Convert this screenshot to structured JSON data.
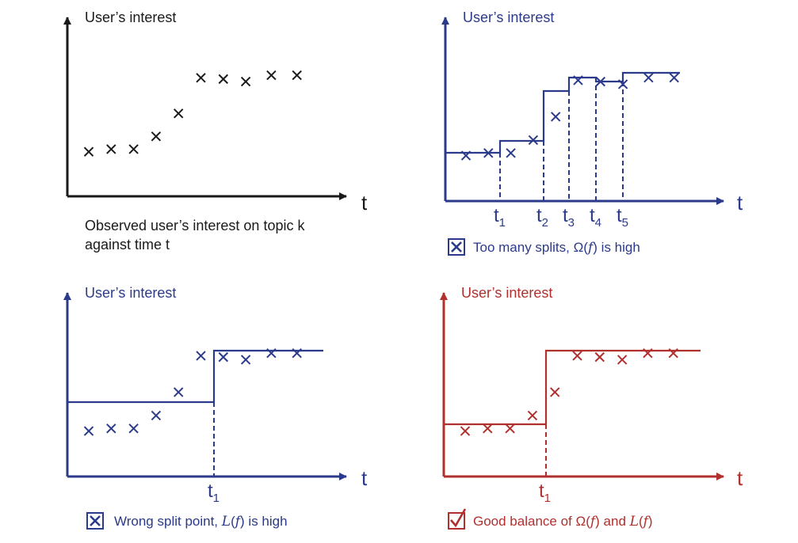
{
  "colors": {
    "black": "#1a1a1a",
    "blue": "#2b3a8a",
    "red": "#b0302e"
  },
  "points": [
    [
      1,
      0.35
    ],
    [
      2,
      0.37
    ],
    [
      3,
      0.37
    ],
    [
      4,
      0.47
    ],
    [
      5,
      0.65
    ],
    [
      6,
      0.93
    ],
    [
      7,
      0.92
    ],
    [
      8,
      0.9
    ],
    [
      9,
      0.95
    ],
    [
      10,
      0.95
    ]
  ],
  "panels": {
    "tl": {
      "ylabel": "User’s interest",
      "xlabel": "t",
      "caption_lines": [
        "Observed user’s interest on topic k",
        "against time t"
      ]
    },
    "tr": {
      "ylabel": "User’s interest",
      "xlabel": "t",
      "ticks": [
        {
          "base": "t",
          "sub": "1"
        },
        {
          "base": "t",
          "sub": "2"
        },
        {
          "base": "t",
          "sub": "3"
        },
        {
          "base": "t",
          "sub": "4"
        },
        {
          "base": "t",
          "sub": "5"
        }
      ],
      "caption": "Too many splits, Ω(f) is high",
      "caption_parts": [
        "Too many splits, Ω(",
        "f",
        ")  is high"
      ],
      "mark": "cross-box-icon"
    },
    "bl": {
      "ylabel": "User’s interest",
      "xlabel": "t",
      "ticks": [
        {
          "base": "t",
          "sub": "1"
        }
      ],
      "caption": "Wrong split point, L(f) is high",
      "caption_parts": [
        "Wrong split point, ",
        "L",
        "(",
        "f",
        ") is high"
      ],
      "mark": "cross-box-icon"
    },
    "br": {
      "ylabel": "User’s interest",
      "xlabel": "t",
      "ticks": [
        {
          "base": "t",
          "sub": "1"
        }
      ],
      "caption": "Good balance of Ω(f) and L(f)",
      "caption_parts": [
        "Good balance of Ω(",
        "f",
        ") and ",
        "L",
        "(",
        "f",
        ")"
      ],
      "mark": "check-box-icon"
    }
  }
}
